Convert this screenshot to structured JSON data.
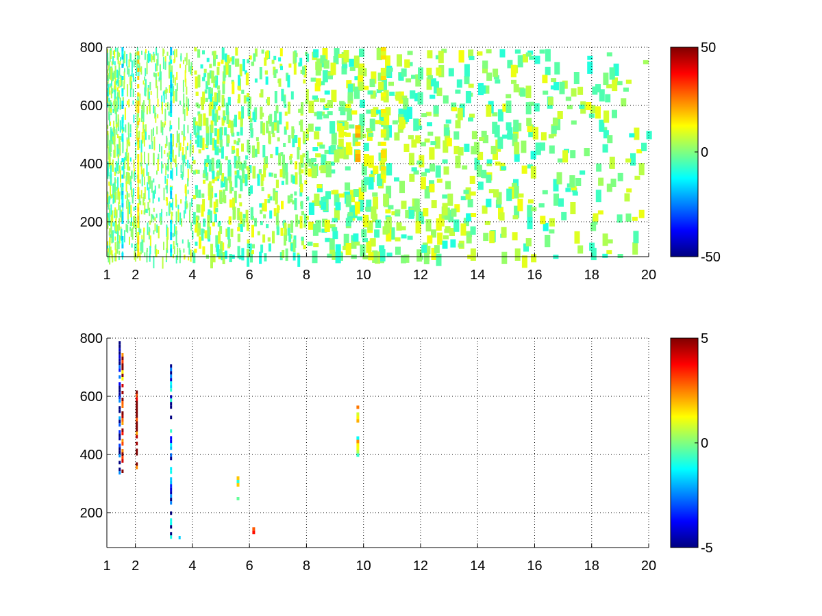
{
  "chart_data": [
    {
      "type": "heatmap",
      "title": "",
      "xlabel": "",
      "ylabel": "",
      "xlim": [
        1,
        20
      ],
      "ylim": [
        80,
        800
      ],
      "grid": true,
      "x_ticks": [
        1,
        2,
        4,
        6,
        8,
        10,
        12,
        14,
        16,
        18,
        20
      ],
      "x_tick_labels": [
        "1",
        "2",
        "4",
        "6",
        "8",
        "10",
        "12",
        "14",
        "16",
        "18",
        "20"
      ],
      "y_ticks": [
        200,
        400,
        600,
        800
      ],
      "y_tick_labels": [
        "200",
        "400",
        "600",
        "800"
      ],
      "colorbar": {
        "colormap": "jet",
        "range": [
          -50,
          50
        ],
        "tick_values": [
          -50,
          0,
          50
        ],
        "tick_labels": [
          "-50",
          "0",
          "50"
        ]
      },
      "data_description": "dense scattered cells, mostly values near 0 (cyan/green/yellow), denser at low x",
      "features": [
        {
          "x": 1.55,
          "y_range": [
            80,
            800
          ],
          "value": -15
        },
        {
          "x": 2.1,
          "y_range": [
            80,
            800
          ],
          "value": 15
        },
        {
          "x": 3.25,
          "y_range": [
            80,
            800
          ],
          "value": -15
        },
        {
          "x": 9.8,
          "y_range": [
            380,
            560
          ],
          "value": 18
        },
        {
          "x": 10.7,
          "y_range": [
            360,
            800
          ],
          "value": 12
        }
      ]
    },
    {
      "type": "heatmap",
      "title": "",
      "xlabel": "",
      "ylabel": "",
      "xlim": [
        1,
        20
      ],
      "ylim": [
        80,
        800
      ],
      "grid": true,
      "x_ticks": [
        1,
        2,
        4,
        6,
        8,
        10,
        12,
        14,
        16,
        18,
        20
      ],
      "x_tick_labels": [
        "1",
        "2",
        "4",
        "6",
        "8",
        "10",
        "12",
        "14",
        "16",
        "18",
        "20"
      ],
      "y_ticks": [
        200,
        400,
        600,
        800
      ],
      "y_tick_labels": [
        "200",
        "400",
        "600",
        "800"
      ],
      "colorbar": {
        "colormap": "jet",
        "range": [
          -5,
          5
        ],
        "tick_values": [
          -5,
          0,
          5
        ],
        "tick_labels": [
          "-5",
          "0",
          "5"
        ]
      },
      "data_description": "very sparse, values mostly near zero; isolated strong cells at low x and a band near x=9.8",
      "features": [
        {
          "x": 1.45,
          "y_range": [
            340,
            790
          ],
          "value": -5
        },
        {
          "x": 1.55,
          "y_range": [
            340,
            760
          ],
          "value": 4
        },
        {
          "x": 2.05,
          "y_range": [
            360,
            620
          ],
          "value": 5
        },
        {
          "x": 3.25,
          "y_range": [
            110,
            710
          ],
          "value": -3
        },
        {
          "x": 3.55,
          "y_range": [
            110,
            120
          ],
          "value": -4
        },
        {
          "x": 5.6,
          "y_range": [
            250,
            360
          ],
          "value": 2
        },
        {
          "x": 6.15,
          "y_range": [
            130,
            150
          ],
          "value": 3
        },
        {
          "x": 9.8,
          "y_range": [
            400,
            580
          ],
          "value": 1
        }
      ]
    }
  ]
}
